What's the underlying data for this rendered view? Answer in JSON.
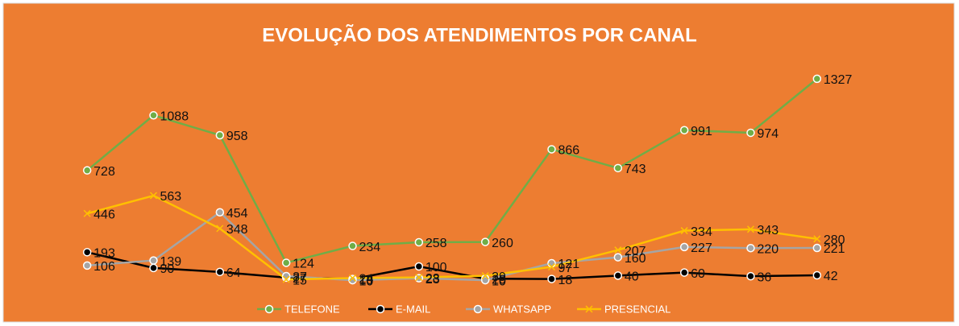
{
  "chart_data": {
    "type": "line",
    "title": "EVOLUÇÃO DOS ATENDIMENTOS POR CANAL",
    "categories": [
      null,
      null,
      null,
      null,
      null,
      null,
      null,
      null,
      null,
      null,
      null,
      null
    ],
    "ylim": [
      0,
      1400
    ],
    "series": [
      {
        "name": "TELEFONE",
        "color": "#70ad47",
        "marker": "circle",
        "values": [
          728,
          1088,
          958,
          124,
          234,
          258,
          260,
          866,
          743,
          991,
          974,
          1327
        ]
      },
      {
        "name": "E-MAIL",
        "color": "#000000",
        "marker": "circle",
        "values": [
          193,
          90,
          64,
          27,
          18,
          100,
          20,
          18,
          40,
          60,
          36,
          42
        ]
      },
      {
        "name": "WHATSAPP",
        "color": "#a5a5a5",
        "marker": "circle",
        "values": [
          106,
          139,
          454,
          37,
          10,
          23,
          10,
          121,
          160,
          227,
          220,
          221
        ]
      },
      {
        "name": "PRESENCIAL",
        "color": "#ffc000",
        "marker": "x",
        "values": [
          446,
          563,
          348,
          15,
          24,
          28,
          39,
          97,
          207,
          334,
          343,
          280
        ]
      }
    ],
    "legend": "bottom"
  }
}
